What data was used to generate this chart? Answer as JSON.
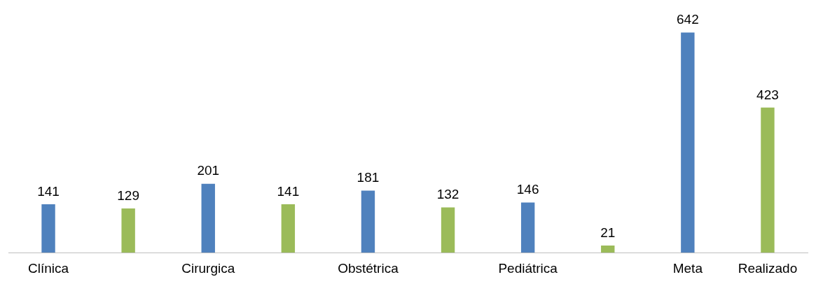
{
  "chart_data": {
    "type": "bar",
    "categories": [
      "Clínica",
      null,
      "Cirurgica",
      null,
      "Obstétrica",
      null,
      "Pediátrica",
      null,
      "Meta",
      "Realizado"
    ],
    "values": [
      141,
      129,
      201,
      141,
      181,
      132,
      146,
      21,
      642,
      423
    ],
    "colors": [
      "#4f81bd",
      "#9bbb59",
      "#4f81bd",
      "#9bbb59",
      "#4f81bd",
      "#9bbb59",
      "#4f81bd",
      "#9bbb59",
      "#4f81bd",
      "#9bbb59"
    ],
    "data_labels": true,
    "legend": false
  }
}
